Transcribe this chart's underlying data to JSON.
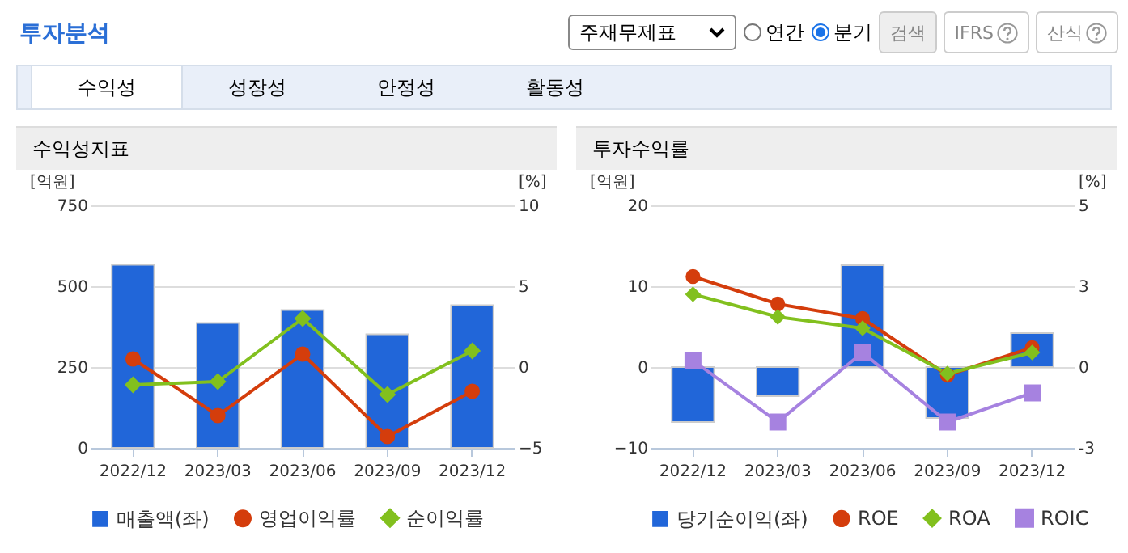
{
  "chart_data": [
    {
      "type": "other",
      "title": "투자분석",
      "annotations": [
        "주재무제표",
        "연간",
        "분기",
        "검색",
        "IFRS",
        "산식",
        "수익성",
        "성장성",
        "안정성",
        "활동성"
      ]
    },
    {
      "type": "bar",
      "title": "수익성지표",
      "ylabel": "[억원]",
      "y2label": "[%]",
      "categories": [
        "2022/12",
        "2023/03",
        "2023/06",
        "2023/09",
        "2023/12"
      ],
      "series": [
        {
          "name": "매출액(좌)",
          "type": "bar",
          "color": "#2166d9",
          "values": [
            566,
            386,
            426,
            351,
            441
          ]
        },
        {
          "name": "영업이익률",
          "type": "line",
          "axis": "y2",
          "marker": "circle",
          "color": "#d43d0c",
          "values": [
            0.5,
            -3.0,
            0.8,
            -4.3,
            -1.5
          ]
        },
        {
          "name": "순이익률",
          "type": "line",
          "axis": "y2",
          "marker": "diamond",
          "color": "#82c01e",
          "values": [
            -1.1,
            -0.9,
            3.0,
            -1.7,
            1.0
          ]
        }
      ],
      "ylim": [
        0,
        750
      ],
      "yticks": [
        0,
        250,
        500,
        750
      ],
      "y2lim": [
        -5,
        10
      ],
      "y2ticks": [
        -5,
        0,
        5,
        10
      ],
      "grid": "y",
      "legend": "bottom",
      "line_style": "solid"
    },
    {
      "type": "bar",
      "title": "투자수익률",
      "ylabel": "[억원]",
      "y2label": "[%]",
      "categories": [
        "2022/12",
        "2023/03",
        "2023/06",
        "2023/09",
        "2023/12"
      ],
      "series": [
        {
          "name": "당기순이익(좌)",
          "type": "bar",
          "color": "#2166d9",
          "values": [
            -6.8,
            -3.6,
            12.6,
            -6.3,
            4.2
          ]
        },
        {
          "name": "ROE",
          "type": "line",
          "axis": "y2",
          "marker": "circle",
          "color": "#d43d0c",
          "values": [
            2.8,
            1.95,
            1.5,
            -0.25,
            0.6
          ]
        },
        {
          "name": "ROA",
          "type": "line",
          "axis": "y2",
          "marker": "diamond",
          "color": "#82c01e",
          "values": [
            2.25,
            1.55,
            1.2,
            -0.2,
            0.45
          ]
        },
        {
          "name": "ROIC",
          "type": "line",
          "axis": "y2",
          "marker": "square",
          "color": "#a682e0",
          "values": [
            0.2,
            -1.7,
            0.45,
            -1.7,
            -0.8
          ]
        }
      ],
      "ylim": [
        -10,
        20
      ],
      "yticks": [
        -10,
        0,
        10,
        20
      ],
      "y2lim": [
        -2.5,
        5
      ],
      "y2ticks": [
        {
          "value": -2.5,
          "label": "-3"
        },
        0,
        {
          "value": 2.5,
          "label": "3"
        },
        5
      ],
      "grid": "y",
      "legend": "bottom",
      "line_style": "solid"
    }
  ]
}
